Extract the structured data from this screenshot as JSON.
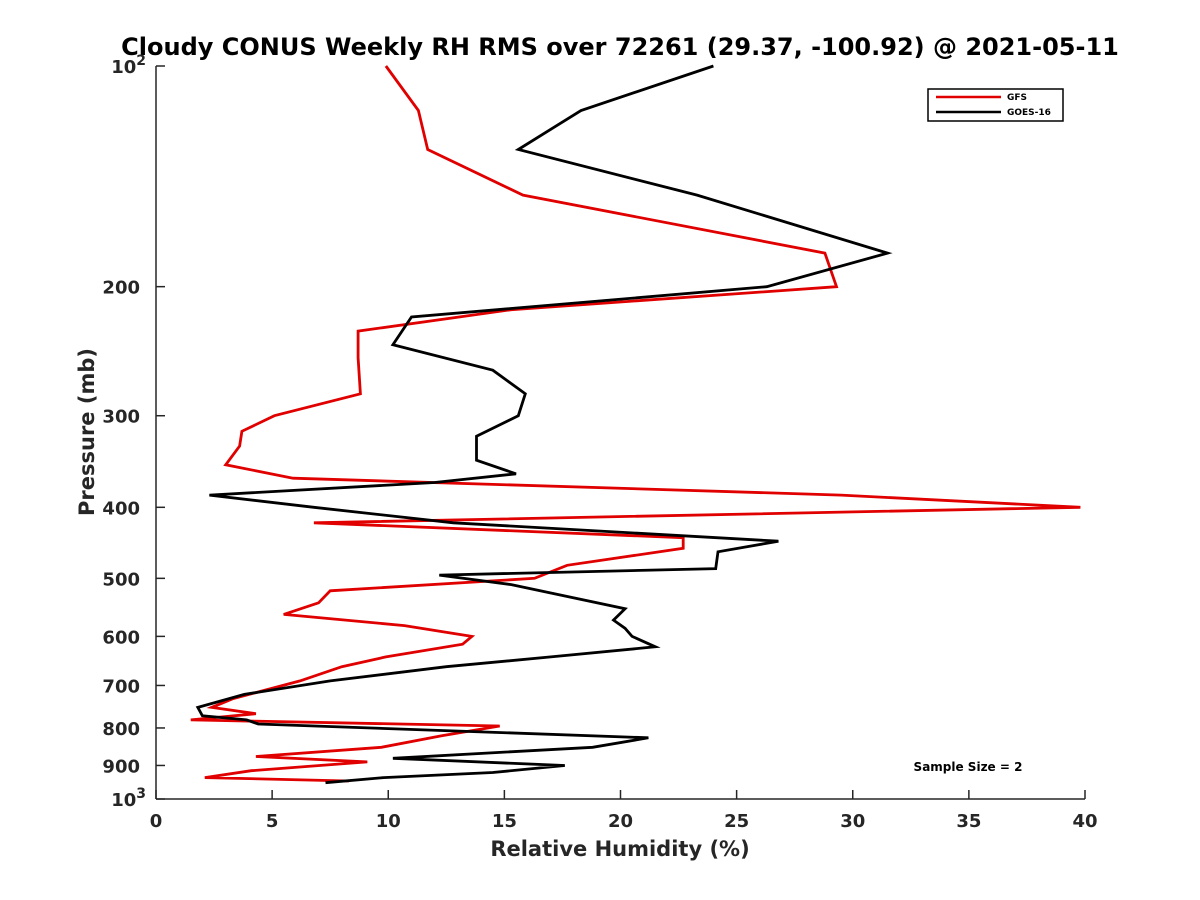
{
  "chart_data": {
    "type": "line",
    "title": "Cloudy CONUS Weekly RH RMS over 72261 (29.37, -100.92) @ 2021-05-11",
    "xlabel": "Relative Humidity (%)",
    "ylabel": "Pressure (mb)",
    "xlim": [
      0,
      40
    ],
    "ylim": [
      100,
      1000
    ],
    "y_scale": "log",
    "y_reversed": true,
    "grid": false,
    "legend_position": "top-right",
    "x_ticks": [
      "0",
      "5",
      "10",
      "15",
      "20",
      "25",
      "30",
      "35",
      "40"
    ],
    "y_ticks": [
      "10^2",
      "200",
      "300",
      "400",
      "500",
      "600",
      "700",
      "800",
      "900",
      "10^3"
    ],
    "series": [
      {
        "name": "GFS",
        "color": "#e00000",
        "points": [
          [
            9.9,
            100
          ],
          [
            11.3,
            115
          ],
          [
            11.7,
            130
          ],
          [
            15.8,
            150
          ],
          [
            28.8,
            180
          ],
          [
            29.3,
            200
          ],
          [
            15.3,
            215
          ],
          [
            8.7,
            230
          ],
          [
            8.7,
            250
          ],
          [
            8.8,
            280
          ],
          [
            5.1,
            300
          ],
          [
            3.7,
            315
          ],
          [
            3.6,
            330
          ],
          [
            3.0,
            350
          ],
          [
            5.9,
            365
          ],
          [
            29.5,
            385
          ],
          [
            39.8,
            400
          ],
          [
            6.8,
            420
          ],
          [
            22.7,
            440
          ],
          [
            22.7,
            455
          ],
          [
            17.7,
            480
          ],
          [
            16.3,
            500
          ],
          [
            7.5,
            520
          ],
          [
            7.0,
            540
          ],
          [
            5.5,
            560
          ],
          [
            10.7,
            580
          ],
          [
            13.6,
            600
          ],
          [
            13.2,
            615
          ],
          [
            9.9,
            640
          ],
          [
            8.0,
            660
          ],
          [
            6.2,
            690
          ],
          [
            3.3,
            730
          ],
          [
            2.4,
            750
          ],
          [
            4.3,
            765
          ],
          [
            1.5,
            780
          ],
          [
            14.8,
            795
          ],
          [
            12.3,
            820
          ],
          [
            9.7,
            850
          ],
          [
            4.3,
            875
          ],
          [
            9.1,
            890
          ],
          [
            4.1,
            915
          ],
          [
            2.1,
            935
          ],
          [
            8.3,
            945
          ]
        ]
      },
      {
        "name": "GOES-16",
        "color": "#000000",
        "points": [
          [
            24.0,
            100
          ],
          [
            18.3,
            115
          ],
          [
            15.6,
            130
          ],
          [
            23.3,
            150
          ],
          [
            31.5,
            180
          ],
          [
            26.3,
            200
          ],
          [
            11.0,
            220
          ],
          [
            10.2,
            240
          ],
          [
            14.5,
            260
          ],
          [
            15.9,
            280
          ],
          [
            15.6,
            300
          ],
          [
            13.8,
            320
          ],
          [
            13.8,
            345
          ],
          [
            15.5,
            360
          ],
          [
            12.0,
            370
          ],
          [
            2.3,
            385
          ],
          [
            6.8,
            400
          ],
          [
            12.8,
            420
          ],
          [
            26.8,
            445
          ],
          [
            24.2,
            460
          ],
          [
            24.1,
            485
          ],
          [
            12.2,
            495
          ],
          [
            15.3,
            510
          ],
          [
            20.2,
            550
          ],
          [
            19.7,
            570
          ],
          [
            20.2,
            585
          ],
          [
            20.5,
            600
          ],
          [
            21.5,
            620
          ],
          [
            17.0,
            640
          ],
          [
            12.5,
            660
          ],
          [
            7.5,
            690
          ],
          [
            3.8,
            720
          ],
          [
            1.8,
            750
          ],
          [
            2.0,
            770
          ],
          [
            3.9,
            780
          ],
          [
            4.4,
            790
          ],
          [
            21.2,
            825
          ],
          [
            18.8,
            850
          ],
          [
            10.2,
            880
          ],
          [
            17.6,
            900
          ],
          [
            14.5,
            920
          ],
          [
            9.8,
            935
          ],
          [
            7.3,
            950
          ]
        ]
      }
    ],
    "annotations": [
      "Sample Size = 2"
    ]
  }
}
